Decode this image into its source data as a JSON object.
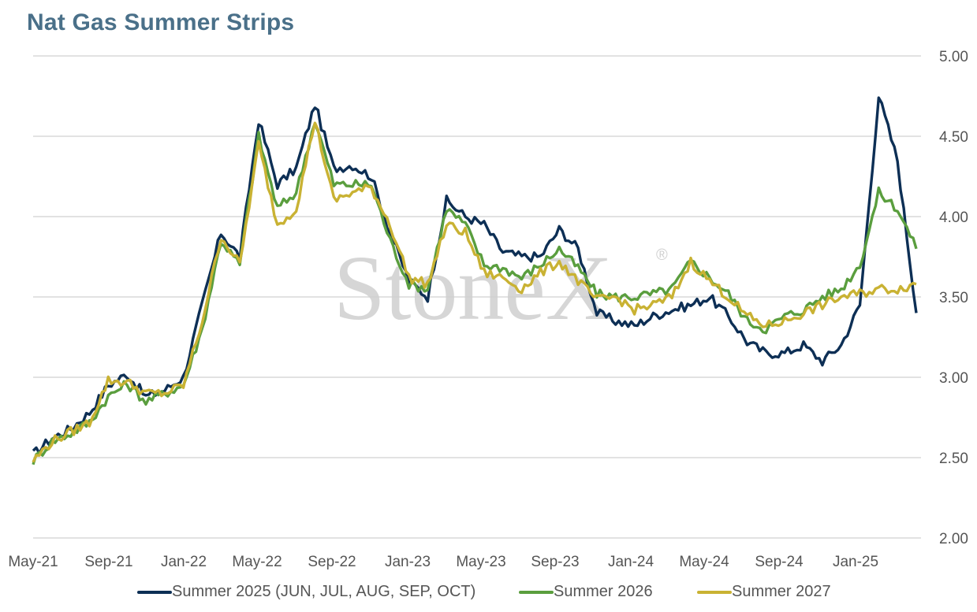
{
  "title": "Nat Gas Summer Strips",
  "watermark": "StoneX",
  "watermark_mark": "®",
  "colors": {
    "title": "#4a7089",
    "grid": "#d0d0d0",
    "tick_text": "#555555",
    "watermark": "#cfcfcf"
  },
  "chart_data": {
    "type": "line",
    "title": "Nat Gas Summer Strips",
    "xlabel": "",
    "ylabel": "",
    "ylim": [
      2.0,
      5.0
    ],
    "y_ticks": [
      "2.00",
      "2.50",
      "3.00",
      "3.50",
      "4.00",
      "4.50",
      "5.00"
    ],
    "x_ticks": [
      "May-21",
      "Sep-21",
      "Jan-22",
      "May-22",
      "Sep-22",
      "Jan-23",
      "May-23",
      "Sep-23",
      "Jan-24",
      "May-24",
      "Sep-24",
      "Jan-25"
    ],
    "y_axis_position": "right",
    "grid": "horizontal",
    "legend_position": "bottom",
    "x": [
      "May-21",
      "Jun-21",
      "Jul-21",
      "Aug-21",
      "Sep-21",
      "Oct-21",
      "Nov-21",
      "Dec-21",
      "Jan-22",
      "Feb-22",
      "Mar-22",
      "Apr-22",
      "May-22",
      "Jun-22",
      "Jul-22",
      "Aug-22",
      "Sep-22",
      "Oct-22",
      "Nov-22",
      "Dec-22",
      "Jan-23",
      "Feb-23",
      "Mar-23",
      "Apr-23",
      "May-23",
      "Jun-23",
      "Jul-23",
      "Aug-23",
      "Sep-23",
      "Oct-23",
      "Nov-23",
      "Dec-23",
      "Jan-24",
      "Feb-24",
      "Mar-24",
      "Apr-24",
      "May-24",
      "Jun-24",
      "Jul-24",
      "Aug-24",
      "Sep-24",
      "Oct-24",
      "Nov-24",
      "Dec-24",
      "Jan-25",
      "Feb-25",
      "Mar-25",
      "Apr-25"
    ],
    "series": [
      {
        "name": "Summer 2025 (JUN, JUL, AUG, SEP, OCT)",
        "color": "#0d2f55",
        "values": [
          2.52,
          2.62,
          2.68,
          2.78,
          2.95,
          3.02,
          2.88,
          2.92,
          3.0,
          3.45,
          3.9,
          3.75,
          4.6,
          4.2,
          4.3,
          4.7,
          4.3,
          4.32,
          4.25,
          3.9,
          3.6,
          3.5,
          4.1,
          4.0,
          3.95,
          3.78,
          3.75,
          3.75,
          3.92,
          3.8,
          3.4,
          3.35,
          3.32,
          3.38,
          3.42,
          3.45,
          3.5,
          3.38,
          3.22,
          3.15,
          3.15,
          3.2,
          3.1,
          3.2,
          3.45,
          4.75,
          4.35,
          3.4
        ]
      },
      {
        "name": "Summer 2026",
        "color": "#5a9e3e",
        "values": [
          2.48,
          2.6,
          2.65,
          2.72,
          2.88,
          2.96,
          2.85,
          2.9,
          2.95,
          3.3,
          3.85,
          3.7,
          4.5,
          4.05,
          4.15,
          4.6,
          4.2,
          4.2,
          4.2,
          3.85,
          3.58,
          3.55,
          4.05,
          3.95,
          3.7,
          3.68,
          3.62,
          3.7,
          3.8,
          3.68,
          3.52,
          3.5,
          3.5,
          3.52,
          3.55,
          3.72,
          3.62,
          3.52,
          3.35,
          3.3,
          3.38,
          3.42,
          3.5,
          3.55,
          3.7,
          4.15,
          4.05,
          3.8
        ]
      },
      {
        "name": "Summer 2027",
        "color": "#c9b233",
        "values": [
          2.48,
          2.6,
          2.66,
          2.72,
          2.98,
          2.97,
          2.9,
          2.9,
          2.95,
          3.35,
          3.88,
          3.7,
          4.45,
          3.95,
          4.05,
          4.6,
          4.1,
          4.15,
          4.18,
          3.95,
          3.62,
          3.58,
          3.95,
          3.9,
          3.65,
          3.62,
          3.55,
          3.65,
          3.72,
          3.6,
          3.48,
          3.5,
          3.42,
          3.45,
          3.5,
          3.72,
          3.6,
          3.5,
          3.38,
          3.32,
          3.35,
          3.4,
          3.45,
          3.5,
          3.52,
          3.55,
          3.55,
          3.58
        ]
      }
    ]
  }
}
